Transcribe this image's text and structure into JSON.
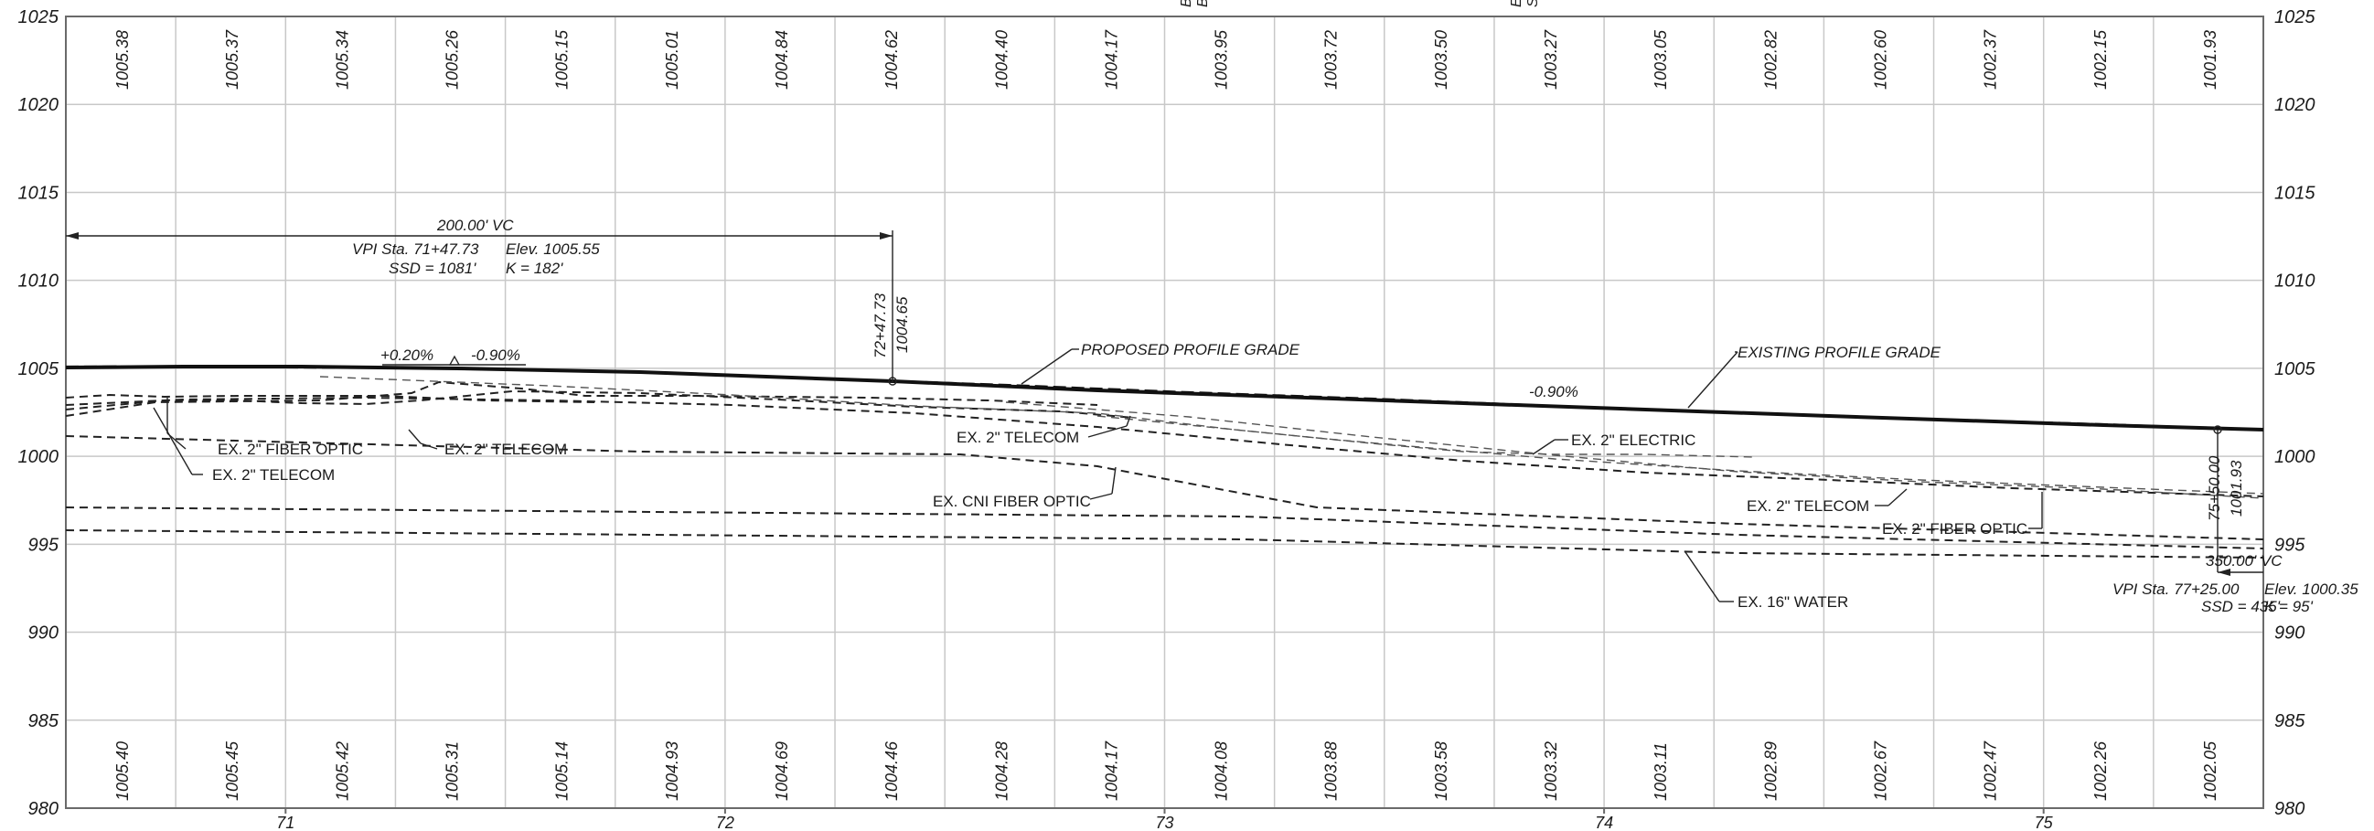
{
  "frame": {
    "x_range_sta": [
      70.5,
      75.5
    ],
    "y_range_elev": [
      980,
      1025
    ],
    "y_ticks_left": [
      "1025",
      "1020",
      "1015",
      "1010",
      "1005",
      "1000",
      "995",
      "990",
      "985",
      "980"
    ],
    "y_ticks_right": [
      "1025",
      "1020",
      "1015",
      "1010",
      "1005",
      "1000",
      "995",
      "990",
      "985",
      "980"
    ],
    "stations": [
      "71",
      "72",
      "73",
      "74",
      "75"
    ]
  },
  "top_elevations": [
    "1005.38",
    "1005.37",
    "1005.34",
    "1005.26",
    "1005.15",
    "1005.01",
    "1004.84",
    "1004.62",
    "1004.40",
    "1004.17",
    "1003.95",
    "1003.72",
    "1003.50",
    "1003.27",
    "1003.05",
    "1002.82",
    "1002.60",
    "1002.37",
    "1002.15",
    "1001.93"
  ],
  "bottom_elevations": [
    "1005.40",
    "1005.45",
    "1005.42",
    "1005.31",
    "1005.14",
    "1004.93",
    "1004.69",
    "1004.46",
    "1004.28",
    "1004.17",
    "1004.08",
    "1003.88",
    "1003.58",
    "1003.32",
    "1003.11",
    "1002.89",
    "1002.67",
    "1002.47",
    "1002.26",
    "1002.05"
  ],
  "top_fragments": {
    "left_a": "BE",
    "left_b": "BE",
    "right_a": "E",
    "right_b": "S"
  },
  "vertical_curve_1": {
    "length": "200.00' VC",
    "vpi": "VPI Sta. 71+47.73",
    "elev": "Elev. 1005.55",
    "ssd": "SSD = 1081'",
    "k": "K = 182'",
    "grade_in": "+0.20%",
    "grade_out": "-0.90%",
    "vpc_station": "72+47.73",
    "vpc_elev": "1004.65"
  },
  "vertical_curve_2": {
    "length": "350.00' VC",
    "vpi": "VPI Sta. 77+25.00",
    "elev": "Elev. 1000.35",
    "ssd": "SSD = 435'",
    "k": "K = 95'",
    "vpc_station": "75+50.00",
    "vpc_elev": "1001.93"
  },
  "grade_main": "-0.90%",
  "labels": {
    "proposed": "PROPOSED PROFILE GRADE",
    "existing": "EXISTING PROFILE GRADE",
    "fiber_optic_left": "EX. 2\" FIBER OPTIC",
    "telecom_left_low": "EX. 2\" TELECOM",
    "telecom_left_mid": "EX. 2\" TELECOM",
    "telecom_center": "EX. 2\" TELECOM",
    "cni_fiber": "EX. CNI FIBER OPTIC",
    "electric": "EX. 2\" ELECTRIC",
    "telecom_right": "EX. 2\" TELECOM",
    "fiber_optic_right": "EX. 2\" FIBER OPTIC",
    "water": "EX. 16\" WATER"
  }
}
